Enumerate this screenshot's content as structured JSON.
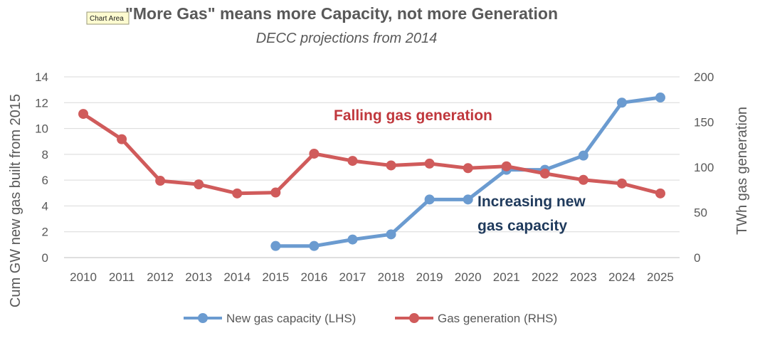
{
  "tooltip": "Chart Area",
  "chart_data": {
    "type": "line",
    "title": "\"More Gas\" means more Capacity, not more Generation",
    "subtitle": "DECC projections from 2014",
    "categories": [
      "2010",
      "2011",
      "2012",
      "2013",
      "2014",
      "2015",
      "2016",
      "2017",
      "2018",
      "2019",
      "2020",
      "2021",
      "2022",
      "2023",
      "2024",
      "2025"
    ],
    "y_left": {
      "label": "Cum GW new gas built from 2015",
      "min": 0,
      "max": 14,
      "ticks": [
        0,
        2,
        4,
        6,
        8,
        10,
        12,
        14
      ]
    },
    "y_right": {
      "label": "TWh gas generation",
      "min": 0,
      "max": 200,
      "ticks": [
        0,
        50,
        100,
        150,
        200
      ]
    },
    "grid": true,
    "legend_position": "bottom",
    "series": [
      {
        "name": "New gas capacity (LHS)",
        "axis": "left",
        "color": "#6b9bd0",
        "values": [
          null,
          null,
          null,
          null,
          null,
          0.9,
          0.9,
          1.4,
          1.8,
          4.5,
          4.5,
          6.8,
          6.8,
          7.9,
          12.0,
          12.4
        ]
      },
      {
        "name": "Gas generation (RHS)",
        "axis": "right",
        "color": "#d05b5b",
        "values": [
          159,
          131,
          85,
          81,
          71,
          72,
          115,
          107,
          102,
          104,
          99,
          101,
          93,
          86,
          82,
          71
        ]
      }
    ],
    "annotations": [
      {
        "text": "Falling gas generation",
        "color": "#c0383d"
      },
      {
        "text": "Increasing new",
        "color": "#1f3a5c"
      },
      {
        "text": "gas capacity",
        "color": "#1f3a5c"
      }
    ]
  }
}
